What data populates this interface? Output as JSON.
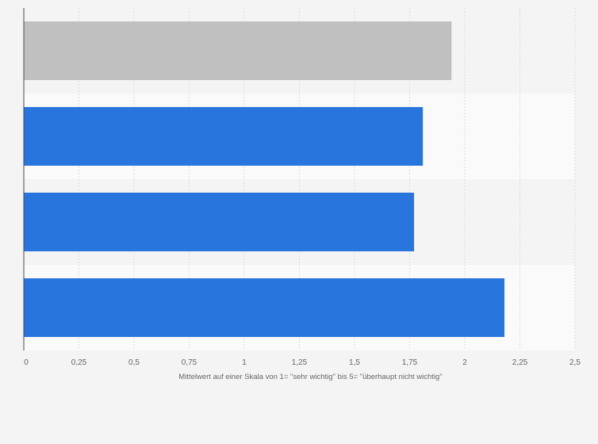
{
  "chart_data": {
    "type": "bar",
    "orientation": "horizontal",
    "categories": [
      "",
      "",
      "",
      ""
    ],
    "values": [
      1.94,
      1.81,
      1.77,
      2.18
    ],
    "bar_colors": [
      "#c0c0c0",
      "#2876dd",
      "#2876dd",
      "#2876dd"
    ],
    "xlim": [
      0,
      2.5
    ],
    "xticks": [
      0,
      0.25,
      0.5,
      0.75,
      1,
      1.25,
      1.5,
      1.75,
      2,
      2.25,
      2.5
    ],
    "xtick_labels": [
      "0",
      "0,25",
      "0,5",
      "0,75",
      "1",
      "1,25",
      "1,5",
      "1,75",
      "2",
      "2,25",
      "2,5"
    ],
    "xlabel": "Mittelwert auf einer Skala von 1= \"sehr wichtig\" bis 5= \"überhaupt nicht wichtig\"",
    "ylabel": "",
    "title": "",
    "grid": "vertical dashed",
    "legend": "none"
  }
}
